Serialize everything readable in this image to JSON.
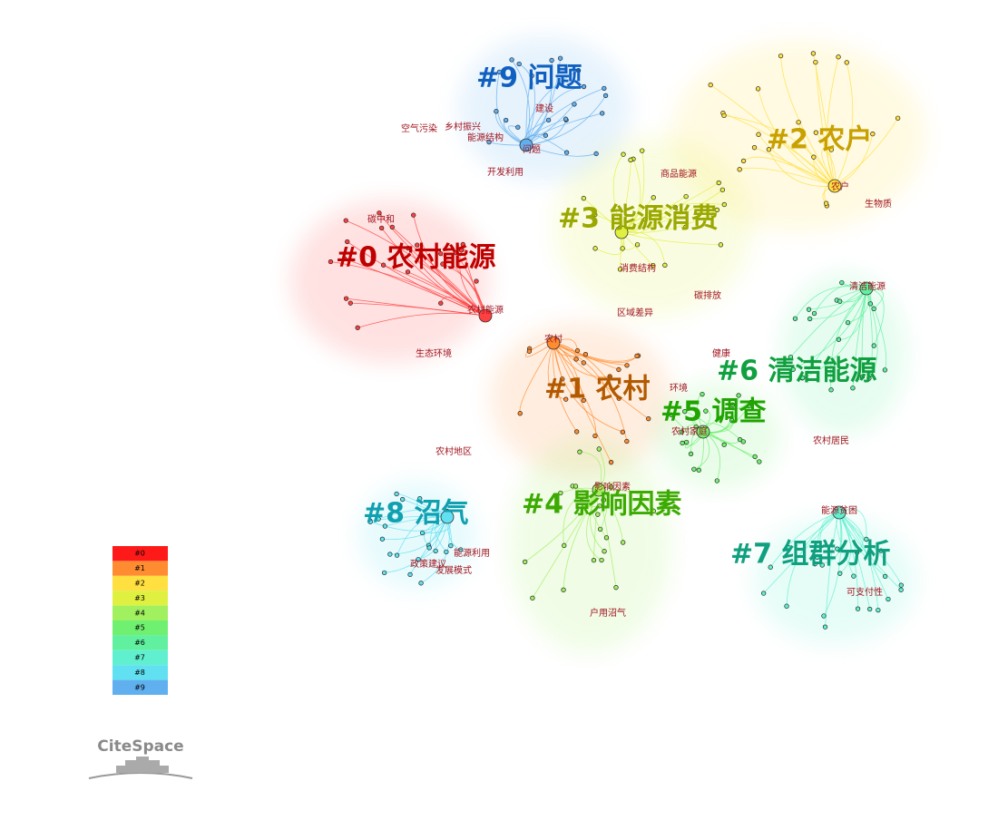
{
  "clusters": [
    {
      "label": "#0 农村能源",
      "color": "#c00000"
    },
    {
      "label": "#1 农村",
      "color": "#b35a00"
    },
    {
      "label": "#2 农户",
      "color": "#c8a000"
    },
    {
      "label": "#3 能源消费",
      "color": "#9aa800"
    },
    {
      "label": "#4 影响因素",
      "color": "#3caa00"
    },
    {
      "label": "#5 调查",
      "color": "#1fa400"
    },
    {
      "label": "#6 清洁能源",
      "color": "#10a040"
    },
    {
      "label": "#7 组群分析",
      "color": "#10a080"
    },
    {
      "label": "#8 沼气",
      "color": "#10a0b0"
    },
    {
      "label": "#9 问题",
      "color": "#1060c0"
    }
  ],
  "nodes": [
    {
      "label": "农村能源"
    },
    {
      "label": "农村"
    },
    {
      "label": "农户"
    },
    {
      "label": "商品能源"
    },
    {
      "label": "生物质"
    },
    {
      "label": "消费结构"
    },
    {
      "label": "碳排放"
    },
    {
      "label": "清洁能源"
    },
    {
      "label": "农村家庭"
    },
    {
      "label": "影响因素"
    },
    {
      "label": "农村居民"
    },
    {
      "label": "能源贫困"
    },
    {
      "label": "问题"
    },
    {
      "label": "能源结构"
    },
    {
      "label": "乡村振兴"
    },
    {
      "label": "空气污染"
    },
    {
      "label": "建设"
    },
    {
      "label": "开发利用"
    },
    {
      "label": "生态环境"
    },
    {
      "label": "碳中和"
    },
    {
      "label": "区域差异"
    },
    {
      "label": "健康"
    },
    {
      "label": "环境"
    },
    {
      "label": "可支付性"
    },
    {
      "label": "政策建议"
    },
    {
      "label": "发展模式"
    },
    {
      "label": "能源利用"
    },
    {
      "label": "户用沼气"
    },
    {
      "label": "农村地区"
    }
  ],
  "legend": [
    "#0",
    "#1",
    "#2",
    "#3",
    "#4",
    "#5",
    "#6",
    "#7",
    "#8",
    "#9"
  ],
  "logo": "CiteSpace"
}
